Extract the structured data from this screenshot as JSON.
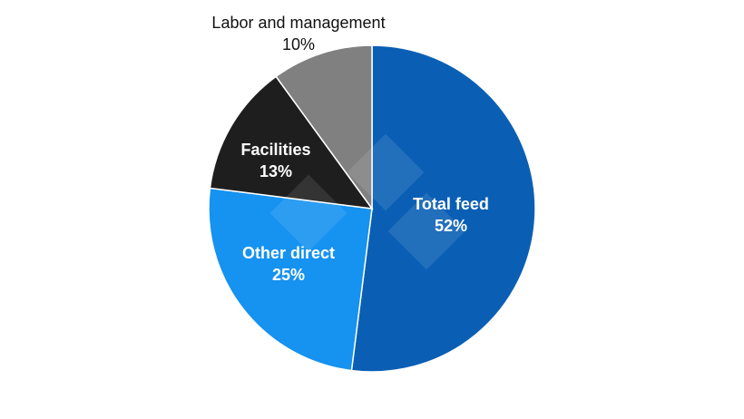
{
  "chart_data": {
    "type": "pie",
    "title": "",
    "categories": [
      "Total feed",
      "Other direct",
      "Facilities",
      "Labor and management"
    ],
    "values": [
      52,
      25,
      13,
      10
    ],
    "colors": [
      "#0a5fb4",
      "#1692f0",
      "#1e1e1e",
      "#808080"
    ],
    "start_angle_deg": 0,
    "direction": "clockwise",
    "legend": "none",
    "labels": [
      {
        "name": "Total feed",
        "pct": "52%"
      },
      {
        "name": "Other direct",
        "pct": "25%"
      },
      {
        "name": "Facilities",
        "pct": "13%"
      },
      {
        "name": "Labor and management",
        "pct": "10%"
      }
    ]
  }
}
